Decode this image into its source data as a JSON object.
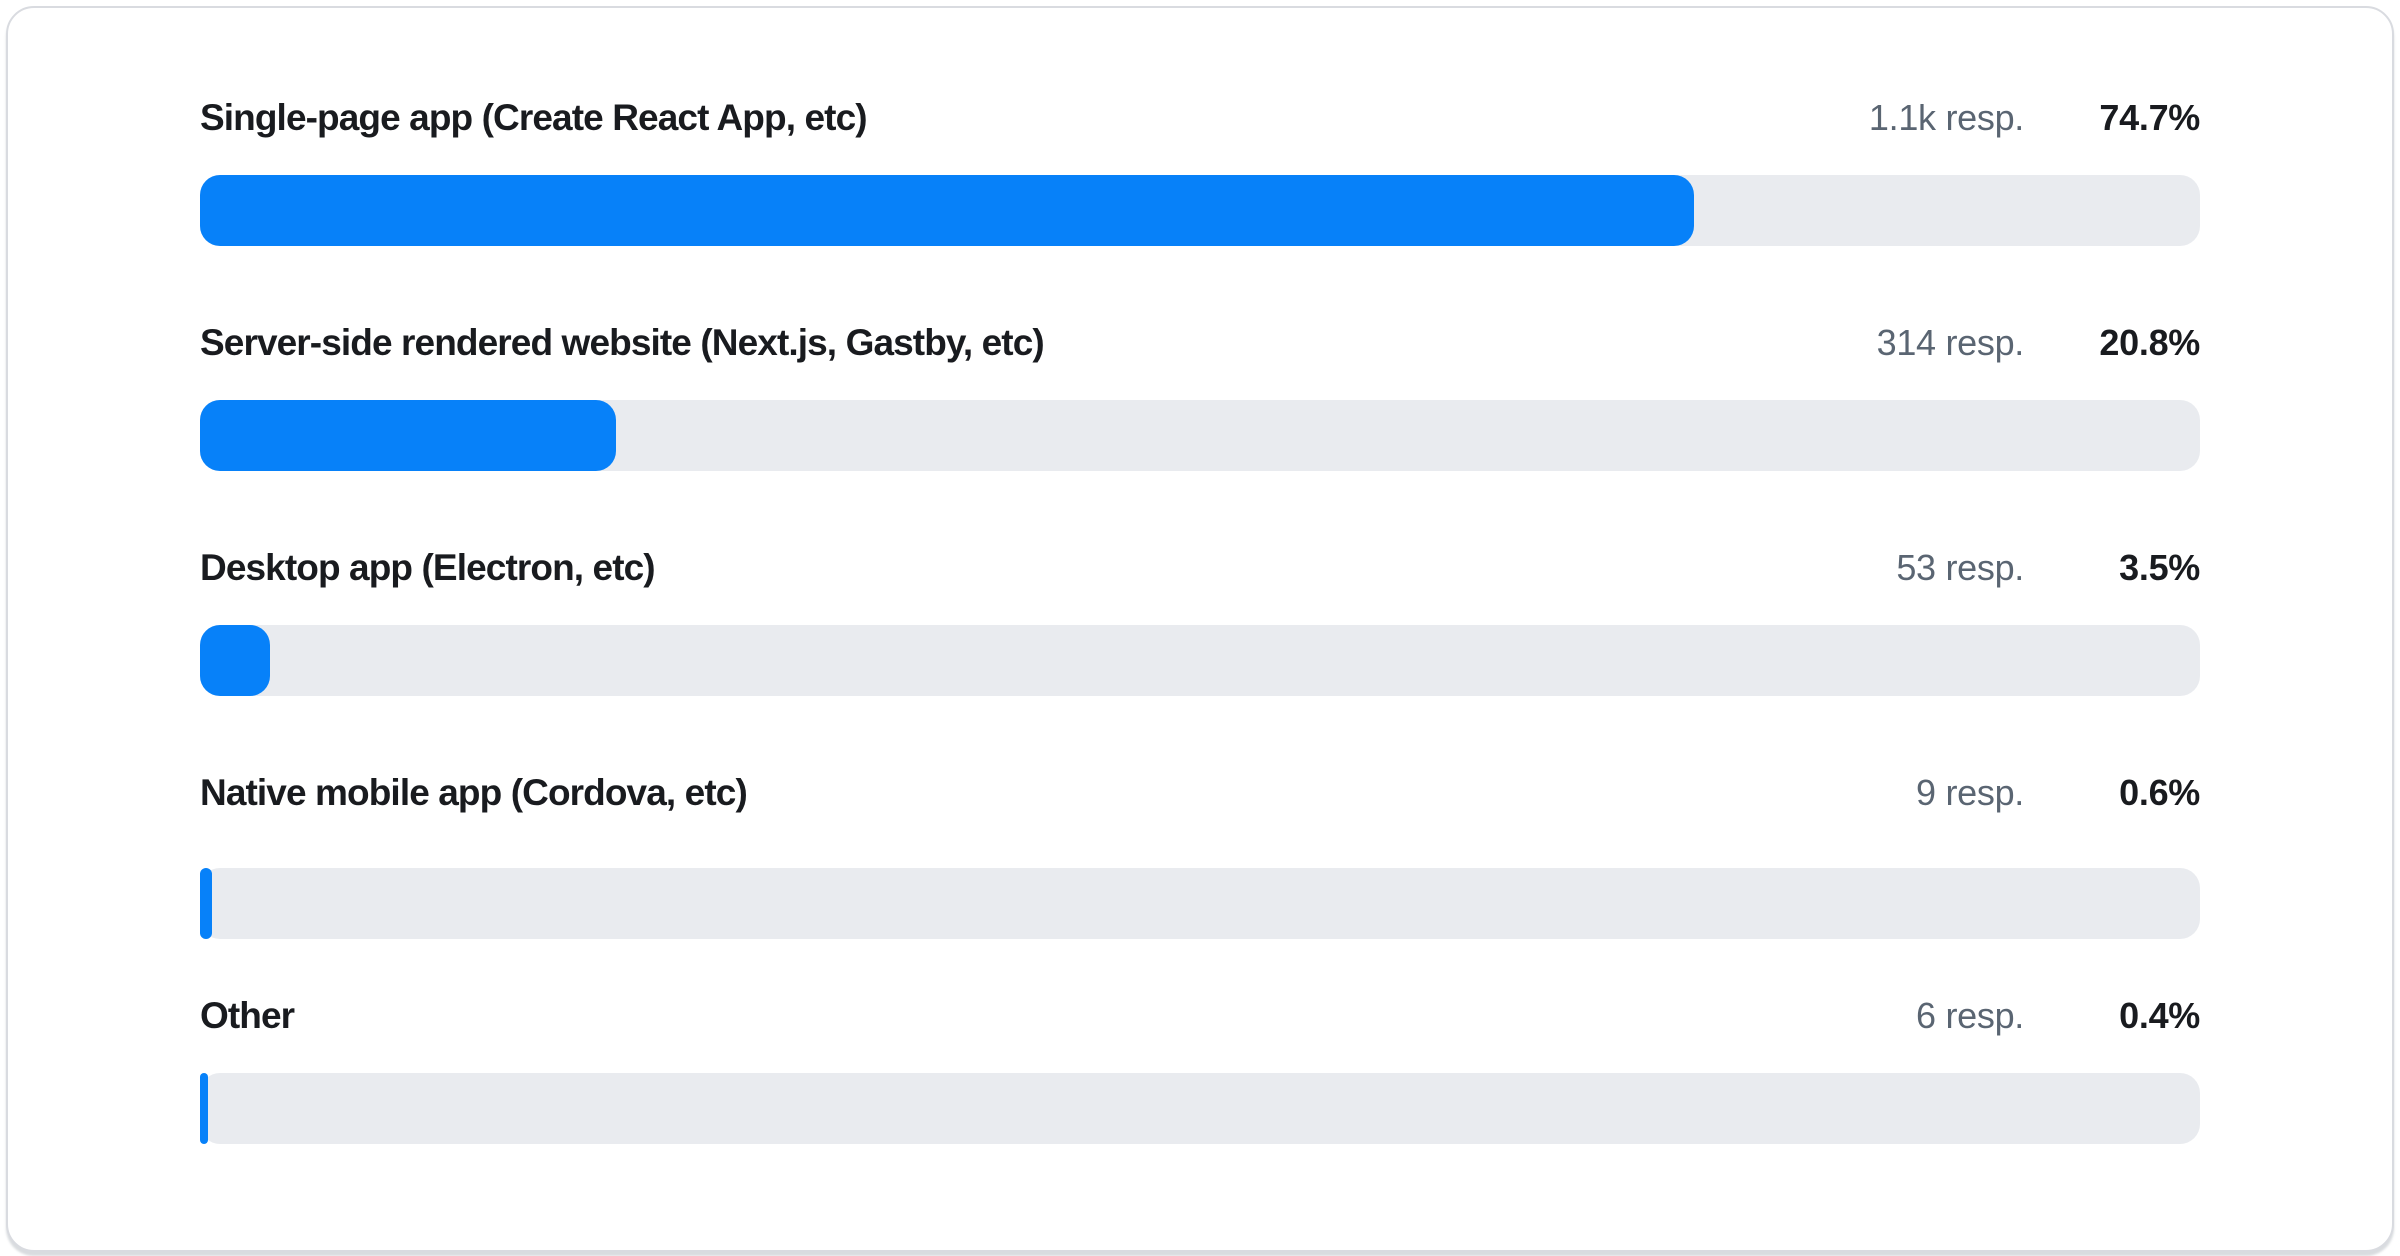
{
  "chart_data": {
    "type": "bar",
    "orientation": "horizontal",
    "title": "",
    "xlabel": "",
    "ylabel": "",
    "xlim": [
      0,
      100
    ],
    "grid": false,
    "legend": false,
    "categories": [
      "Single-page app (Create React App, etc)",
      "Server-side rendered website (Next.js, Gastby, etc)",
      "Desktop app (Electron, etc)",
      "Native mobile app (Cordova, etc)",
      "Other"
    ],
    "values": [
      74.7,
      20.8,
      3.5,
      0.6,
      0.4
    ],
    "value_labels": [
      "74.7%",
      "20.8%",
      "3.5%",
      "0.6%",
      "0.4%"
    ],
    "response_counts": [
      "1.1k resp.",
      "314 resp.",
      "53 resp.",
      "9 resp.",
      "6 resp."
    ]
  },
  "colors": {
    "bar_fill": "#0781f9",
    "bar_track": "#e9ebef",
    "label_text": "#191b1f",
    "muted_text": "#5a6572",
    "card_border": "#d9dbe0"
  }
}
